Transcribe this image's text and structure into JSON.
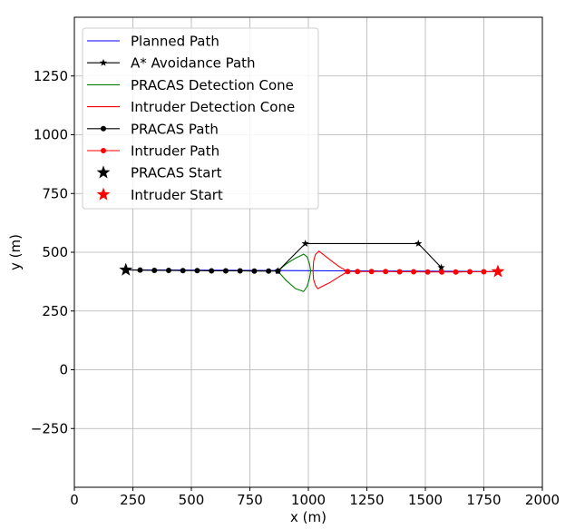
{
  "chart_data": {
    "type": "line",
    "title": "",
    "xlabel": "x (m)",
    "ylabel": "y (m)",
    "xlim": [
      0,
      2000
    ],
    "ylim": [
      -500,
      1500
    ],
    "grid": true,
    "legend_position": "top-left",
    "x_ticks": [
      0,
      250,
      500,
      750,
      1000,
      1250,
      1500,
      1750,
      2000
    ],
    "x_tick_labels": [
      "0",
      "250",
      "500",
      "750",
      "1000",
      "1250",
      "1500",
      "1750",
      "2000"
    ],
    "y_ticks": [
      -250,
      0,
      250,
      500,
      750,
      1000,
      1250
    ],
    "y_tick_labels": [
      "−250",
      "0",
      "250",
      "500",
      "750",
      "1000",
      "1250"
    ],
    "series": [
      {
        "name": "Planned Path",
        "kind": "line",
        "color": "#0000ff",
        "x": [
          220,
          1810
        ],
        "y": [
          425,
          418
        ]
      },
      {
        "name": "A* Avoidance Path",
        "kind": "line-star",
        "color": "#000000",
        "x": [
          870,
          987,
          1470,
          1568
        ],
        "y": [
          420,
          537,
          537,
          435
        ]
      },
      {
        "name": "PRACAS Detection Cone",
        "kind": "curve",
        "color": "#008000",
        "x": [
          870,
          905,
          945,
          980,
          995,
          1005,
          1010,
          1005,
          995,
          980,
          945,
          905,
          870
        ],
        "y": [
          420,
          450,
          475,
          492,
          480,
          450,
          420,
          390,
          355,
          333,
          345,
          380,
          420
        ]
      },
      {
        "name": "Intruder Detection Cone",
        "kind": "curve",
        "color": "#ff0000",
        "x": [
          1168,
          1130,
          1090,
          1045,
          1030,
          1022,
          1020,
          1022,
          1030,
          1040,
          1090,
          1130,
          1168
        ],
        "y": [
          418,
          440,
          470,
          505,
          490,
          460,
          420,
          385,
          360,
          345,
          370,
          395,
          418
        ]
      },
      {
        "name": "PRACAS Path",
        "kind": "line-dot",
        "color": "#000000",
        "x": [
          220,
          281,
          342,
          403,
          464,
          525,
          586,
          647,
          708,
          769,
          830,
          870
        ],
        "y": [
          425,
          424,
          423,
          423,
          422,
          422,
          421,
          421,
          421,
          420,
          420,
          420
        ]
      },
      {
        "name": "Intruder Path",
        "kind": "line-dot",
        "color": "#ff0000",
        "x": [
          1810,
          1750,
          1690,
          1630,
          1570,
          1510,
          1450,
          1390,
          1330,
          1270,
          1210,
          1168
        ],
        "y": [
          418,
          417,
          417,
          416,
          416,
          416,
          417,
          417,
          418,
          418,
          418,
          418
        ]
      },
      {
        "name": "PRACAS Start",
        "kind": "start",
        "color": "#000000",
        "x": [
          220
        ],
        "y": [
          425
        ]
      },
      {
        "name": "Intruder Start",
        "kind": "start",
        "color": "#ff0000",
        "x": [
          1810
        ],
        "y": [
          418
        ]
      }
    ]
  }
}
